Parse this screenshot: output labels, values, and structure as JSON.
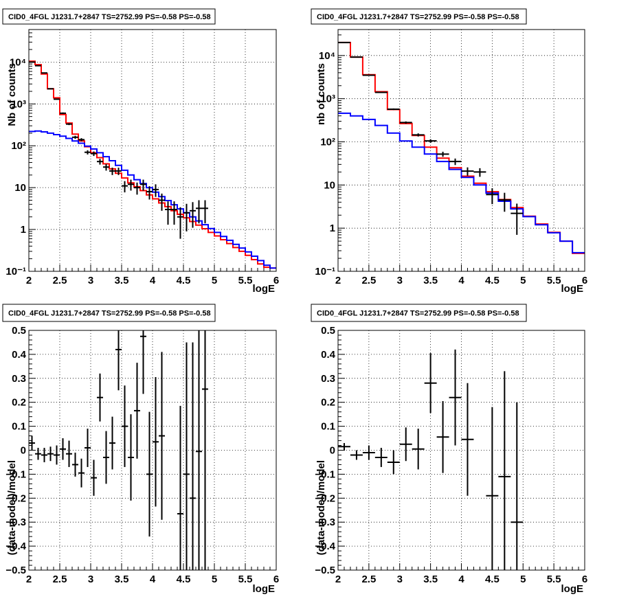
{
  "chart_data": [
    {
      "type": "line",
      "title": "CID0_4FGL J1231.7+2847 TS=2752.99 PS=-0.58 PS=-0.58",
      "xlabel": "logE",
      "ylabel": "Nb of counts",
      "xlim": [
        2,
        6
      ],
      "ylim": [
        0.1,
        60000
      ],
      "yscale": "log",
      "grid": true,
      "x_ticks": [
        "2",
        "2.5",
        "3",
        "3.5",
        "4",
        "4.5",
        "5",
        "5.5",
        "6"
      ],
      "y_ticks": [
        "10⁻¹",
        "1",
        "10",
        "10²",
        "10³",
        "10⁴"
      ],
      "series": [
        {
          "color": "#ff0000",
          "bins": {
            "lo": 2.0,
            "width": 0.1,
            "values": [
              10500,
              8700,
              5200,
              2300,
              1400,
              560,
              350,
              190,
              130,
              95,
              68,
              52,
              37,
              28,
              22,
              17,
              13,
              10.5,
              8.5,
              6.7,
              5.4,
              4.3,
              3.5,
              2.8,
              2.3,
              1.9,
              1.55,
              1.27,
              1.04,
              0.85,
              0.7,
              0.57,
              0.46,
              0.37,
              0.3,
              0.24,
              0.19,
              0.15,
              0.125,
              0.12
            ]
          }
        },
        {
          "color": "#0000ff",
          "bins": {
            "lo": 2.0,
            "width": 0.1,
            "values": [
              220,
              225,
              215,
              200,
              185,
              170,
              150,
              130,
              115,
              98,
              84,
              68,
              55,
              44,
              34,
              26,
              20,
              15.5,
              12.5,
              10,
              7.8,
              6.1,
              4.9,
              3.9,
              3.1,
              2.5,
              2.0,
              1.6,
              1.3,
              1.05,
              0.85,
              0.68,
              0.55,
              0.44,
              0.36,
              0.29,
              0.23,
              0.18,
              0.14,
              0.12
            ]
          }
        }
      ],
      "data_points": {
        "color": "#000000",
        "xerr": 0.05,
        "points": [
          [
            2.05,
            10000,
            100
          ],
          [
            2.15,
            8200,
            90
          ],
          [
            2.25,
            5500,
            75
          ],
          [
            2.35,
            2300,
            50
          ],
          [
            2.45,
            1300,
            36
          ],
          [
            2.55,
            600,
            25
          ],
          [
            2.65,
            330,
            18
          ],
          [
            2.75,
            160,
            13
          ],
          [
            2.85,
            140,
            12
          ],
          [
            2.95,
            70,
            8
          ],
          [
            3.05,
            65,
            8
          ],
          [
            3.15,
            42,
            6.5
          ],
          [
            3.25,
            31,
            5.5
          ],
          [
            3.35,
            25,
            5
          ],
          [
            3.45,
            25,
            5
          ],
          [
            3.55,
            11,
            3.3
          ],
          [
            3.65,
            12,
            3.5
          ],
          [
            3.75,
            10,
            3.2
          ],
          [
            3.85,
            12,
            3.5
          ],
          [
            3.95,
            8,
            2.8
          ],
          [
            4.05,
            9,
            3
          ],
          [
            4.15,
            5,
            2.2
          ],
          [
            4.25,
            3,
            1.7
          ],
          [
            4.35,
            3,
            1.7
          ],
          [
            4.45,
            2,
            1.4
          ],
          [
            4.55,
            2.5,
            1.6
          ],
          [
            4.65,
            2.8,
            1.7
          ],
          [
            4.75,
            3.2,
            1.8
          ],
          [
            4.85,
            3.2,
            1.8
          ]
        ]
      }
    },
    {
      "type": "line",
      "title": "CID0_4FGL J1231.7+2847 TS=2752.99 PS=-0.58 PS=-0.58",
      "xlabel": "logE",
      "ylabel": "nb of counts",
      "xlim": [
        2,
        6
      ],
      "ylim": [
        0.1,
        40000
      ],
      "yscale": "log",
      "grid": true,
      "x_ticks": [
        "2",
        "2.5",
        "3",
        "3.5",
        "4",
        "4.5",
        "5",
        "5.5",
        "6"
      ],
      "y_ticks": [
        "10⁻¹",
        "1",
        "10",
        "10²",
        "10³",
        "10⁴"
      ],
      "series": [
        {
          "color": "#ff0000",
          "bins": {
            "lo": 2.0,
            "width": 0.2,
            "values": [
              20000,
              9200,
              3600,
              1450,
              560,
              265,
              140,
              75,
              42,
              25,
              16,
              11,
              7,
              4.6,
              3,
              1.9,
              1.25,
              0.8,
              0.5,
              0.26
            ]
          }
        },
        {
          "color": "#0000ff",
          "bins": {
            "lo": 2.0,
            "width": 0.2,
            "values": [
              460,
              400,
              330,
              240,
              160,
              105,
              75,
              52,
              35,
              23,
              15,
              10,
              6.5,
              4.2,
              2.8,
              1.85,
              1.2,
              0.78,
              0.5,
              0.27
            ]
          }
        }
      ],
      "data_points": {
        "color": "#000000",
        "xerr": 0.1,
        "points": [
          [
            2.1,
            20000,
            140
          ],
          [
            2.3,
            9200,
            96
          ],
          [
            2.5,
            3500,
            60
          ],
          [
            2.7,
            1400,
            38
          ],
          [
            2.9,
            570,
            24
          ],
          [
            3.1,
            280,
            17
          ],
          [
            3.3,
            145,
            12
          ],
          [
            3.5,
            105,
            10
          ],
          [
            3.7,
            52,
            7
          ],
          [
            3.9,
            35,
            6
          ],
          [
            4.1,
            21,
            4.6
          ],
          [
            4.3,
            20,
            4.5
          ],
          [
            4.5,
            6,
            2.4
          ],
          [
            4.7,
            4.5,
            2.1
          ],
          [
            4.9,
            2.2,
            1.5
          ]
        ]
      }
    },
    {
      "type": "scatter",
      "title": "CID0_4FGL J1231.7+2847 TS=2752.99 PS=-0.58 PS=-0.58",
      "xlabel": "logE",
      "ylabel": "(data-model)/model",
      "xlim": [
        2,
        6
      ],
      "ylim": [
        -0.5,
        0.5
      ],
      "grid": true,
      "x_ticks": [
        "2",
        "2.5",
        "3",
        "3.5",
        "4",
        "4.5",
        "5",
        "5.5",
        "6"
      ],
      "y_ticks": [
        "−0.5",
        "−0.4",
        "−0.3",
        "−0.2",
        "−0.1",
        "0",
        "0.1",
        "0.2",
        "0.3",
        "0.4",
        "0.5"
      ],
      "data_points": {
        "color": "#000000",
        "xerr": 0.05,
        "points": [
          [
            2.05,
            0.03,
            0.03
          ],
          [
            2.15,
            -0.015,
            0.025
          ],
          [
            2.25,
            -0.02,
            0.03
          ],
          [
            2.35,
            -0.015,
            0.03
          ],
          [
            2.45,
            -0.02,
            0.04
          ],
          [
            2.55,
            0.005,
            0.045
          ],
          [
            2.65,
            -0.015,
            0.055
          ],
          [
            2.75,
            -0.06,
            0.05
          ],
          [
            2.85,
            -0.095,
            0.06
          ],
          [
            2.95,
            0.01,
            0.08
          ],
          [
            3.05,
            -0.115,
            0.075
          ],
          [
            3.15,
            0.22,
            0.1
          ],
          [
            3.25,
            -0.03,
            0.11
          ],
          [
            3.35,
            0.03,
            0.11
          ],
          [
            3.45,
            0.42,
            0.17
          ],
          [
            3.55,
            0.1,
            0.17
          ],
          [
            3.65,
            -0.03,
            0.18
          ],
          [
            3.75,
            0.165,
            0.2
          ],
          [
            3.85,
            0.475,
            0.24
          ],
          [
            3.95,
            -0.1,
            0.26
          ],
          [
            4.05,
            0.035,
            0.27
          ],
          [
            4.15,
            0.06,
            0.35
          ],
          [
            4.45,
            -0.265,
            0.45
          ],
          [
            4.55,
            -0.1,
            0.55
          ],
          [
            4.65,
            -0.2,
            0.65
          ],
          [
            4.75,
            -0.005,
            0.7
          ],
          [
            4.85,
            0.255,
            0.8
          ]
        ]
      }
    },
    {
      "type": "scatter",
      "title": "CID0_4FGL J1231.7+2847 TS=2752.99 PS=-0.58 PS=-0.58",
      "xlabel": "logE",
      "ylabel": "(data-model)/model",
      "xlim": [
        2,
        6
      ],
      "ylim": [
        -0.5,
        0.5
      ],
      "grid": true,
      "x_ticks": [
        "2",
        "2.5",
        "3",
        "3.5",
        "4",
        "4.5",
        "5",
        "5.5",
        "6"
      ],
      "y_ticks": [
        "−0.5",
        "−0.4",
        "−0.3",
        "−0.2",
        "−0.1",
        "0",
        "0.1",
        "0.2",
        "0.3",
        "0.4",
        "0.5"
      ],
      "data_points": {
        "color": "#000000",
        "xerr": 0.1,
        "points": [
          [
            2.1,
            0.015,
            0.015
          ],
          [
            2.3,
            -0.02,
            0.02
          ],
          [
            2.5,
            -0.01,
            0.03
          ],
          [
            2.7,
            -0.03,
            0.04
          ],
          [
            2.9,
            -0.05,
            0.05
          ],
          [
            3.1,
            0.025,
            0.07
          ],
          [
            3.3,
            0.005,
            0.085
          ],
          [
            3.5,
            0.28,
            0.125
          ],
          [
            3.7,
            0.055,
            0.15
          ],
          [
            3.9,
            0.22,
            0.2
          ],
          [
            4.1,
            0.045,
            0.235
          ],
          [
            4.5,
            -0.19,
            0.37
          ],
          [
            4.7,
            -0.11,
            0.44
          ],
          [
            4.9,
            -0.3,
            0.5
          ]
        ]
      }
    }
  ]
}
